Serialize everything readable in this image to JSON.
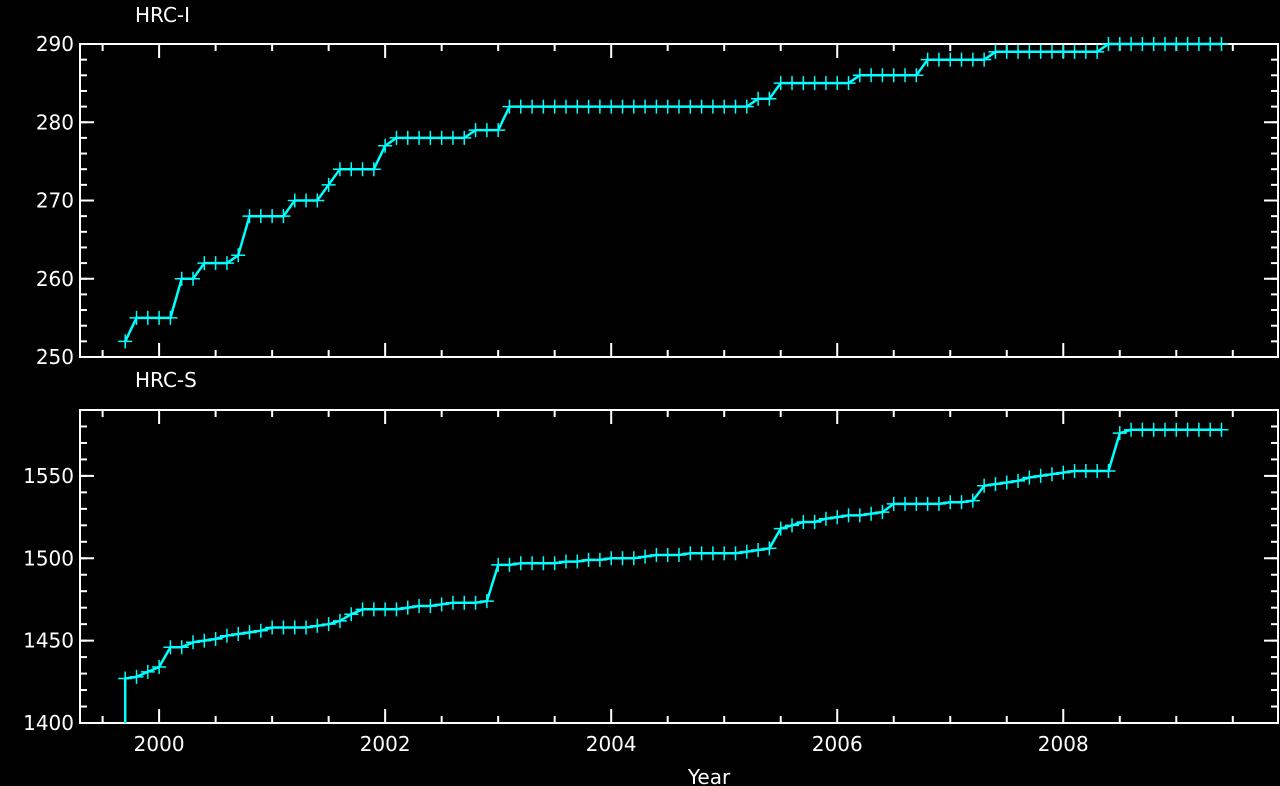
{
  "chart_data": [
    {
      "type": "line",
      "title": "HRC-I",
      "xlabel": "",
      "ylabel": "",
      "xlim": [
        1999.3,
        2009.9
      ],
      "ylim": [
        250,
        290
      ],
      "yticks": [
        250,
        260,
        270,
        280,
        290
      ],
      "xticks": [
        2000,
        2002,
        2004,
        2006,
        2008
      ],
      "x_tick_labels": [
        "",
        "",
        "",
        "",
        ""
      ],
      "y_tick_labels": [
        "250",
        "260",
        "270",
        "280",
        "290"
      ],
      "color": "#00ffff",
      "marker": "+",
      "grid": false,
      "x": [
        1999.7,
        1999.8,
        1999.9,
        2000.0,
        2000.1,
        2000.2,
        2000.3,
        2000.4,
        2000.5,
        2000.6,
        2000.7,
        2000.8,
        2000.9,
        2001.0,
        2001.1,
        2001.2,
        2001.3,
        2001.4,
        2001.5,
        2001.6,
        2001.7,
        2001.8,
        2001.9,
        2002.0,
        2002.1,
        2002.2,
        2002.3,
        2002.4,
        2002.5,
        2002.6,
        2002.7,
        2002.8,
        2002.9,
        2003.0,
        2003.1,
        2003.2,
        2003.3,
        2003.4,
        2003.5,
        2003.6,
        2003.7,
        2003.8,
        2003.9,
        2004.0,
        2004.1,
        2004.2,
        2004.3,
        2004.4,
        2004.5,
        2004.6,
        2004.7,
        2004.8,
        2004.9,
        2005.0,
        2005.1,
        2005.2,
        2005.3,
        2005.4,
        2005.5,
        2005.6,
        2005.7,
        2005.8,
        2005.9,
        2006.0,
        2006.1,
        2006.2,
        2006.3,
        2006.4,
        2006.5,
        2006.6,
        2006.7,
        2006.8,
        2006.9,
        2007.0,
        2007.1,
        2007.2,
        2007.3,
        2007.4,
        2007.5,
        2007.6,
        2007.7,
        2007.8,
        2007.9,
        2008.0,
        2008.1,
        2008.2,
        2008.3,
        2008.4,
        2008.5,
        2008.6,
        2008.7,
        2008.8,
        2008.9,
        2009.0,
        2009.1,
        2009.2,
        2009.3,
        2009.4
      ],
      "y": [
        252,
        255,
        255,
        255,
        255,
        260,
        260,
        262,
        262,
        262,
        263,
        268,
        268,
        268,
        268,
        270,
        270,
        270,
        272,
        274,
        274,
        274,
        274,
        277,
        278,
        278,
        278,
        278,
        278,
        278,
        278,
        279,
        279,
        279,
        282,
        282,
        282,
        282,
        282,
        282,
        282,
        282,
        282,
        282,
        282,
        282,
        282,
        282,
        282,
        282,
        282,
        282,
        282,
        282,
        282,
        282,
        283,
        283,
        285,
        285,
        285,
        285,
        285,
        285,
        285,
        286,
        286,
        286,
        286,
        286,
        286,
        288,
        288,
        288,
        288,
        288,
        288,
        289,
        289,
        289,
        289,
        289,
        289,
        289,
        289,
        289,
        289,
        290,
        290,
        290,
        290,
        290,
        290,
        290,
        290,
        290,
        290,
        290
      ]
    },
    {
      "type": "line",
      "title": "HRC-S",
      "xlabel": "Year",
      "ylabel": "",
      "xlim": [
        1999.3,
        2009.9
      ],
      "ylim": [
        1400,
        1590
      ],
      "yticks": [
        1400,
        1450,
        1500,
        1550
      ],
      "xticks": [
        2000,
        2002,
        2004,
        2006,
        2008
      ],
      "x_tick_labels": [
        "2000",
        "2002",
        "2004",
        "2006",
        "2008"
      ],
      "y_tick_labels": [
        "1400",
        "1450",
        "1500",
        "1550"
      ],
      "color": "#00ffff",
      "marker": "+",
      "grid": false,
      "x": [
        1999.7,
        1999.8,
        1999.9,
        2000.0,
        2000.1,
        2000.2,
        2000.3,
        2000.4,
        2000.5,
        2000.6,
        2000.7,
        2000.8,
        2000.9,
        2001.0,
        2001.1,
        2001.2,
        2001.3,
        2001.4,
        2001.5,
        2001.6,
        2001.7,
        2001.8,
        2001.9,
        2002.0,
        2002.1,
        2002.2,
        2002.3,
        2002.4,
        2002.5,
        2002.6,
        2002.7,
        2002.8,
        2002.9,
        2003.0,
        2003.1,
        2003.2,
        2003.3,
        2003.4,
        2003.5,
        2003.6,
        2003.7,
        2003.8,
        2003.9,
        2004.0,
        2004.1,
        2004.2,
        2004.3,
        2004.4,
        2004.5,
        2004.6,
        2004.7,
        2004.8,
        2004.9,
        2005.0,
        2005.1,
        2005.2,
        2005.3,
        2005.4,
        2005.5,
        2005.6,
        2005.7,
        2005.8,
        2005.9,
        2006.0,
        2006.1,
        2006.2,
        2006.3,
        2006.4,
        2006.5,
        2006.6,
        2006.7,
        2006.8,
        2006.9,
        2007.0,
        2007.1,
        2007.2,
        2007.3,
        2007.4,
        2007.5,
        2007.6,
        2007.7,
        2007.8,
        2007.9,
        2008.0,
        2008.1,
        2008.2,
        2008.3,
        2008.4,
        2008.5,
        2008.6,
        2008.7,
        2008.8,
        2008.9,
        2009.0,
        2009.1,
        2009.2,
        2009.3,
        2009.4
      ],
      "y": [
        1427,
        1428,
        1431,
        1434,
        1446,
        1446,
        1449,
        1450,
        1451,
        1453,
        1454,
        1455,
        1456,
        1458,
        1458,
        1458,
        1458,
        1459,
        1460,
        1462,
        1466,
        1469,
        1469,
        1469,
        1469,
        1470,
        1471,
        1471,
        1472,
        1473,
        1473,
        1473,
        1474,
        1496,
        1496,
        1497,
        1497,
        1497,
        1497,
        1498,
        1498,
        1499,
        1499,
        1500,
        1500,
        1500,
        1501,
        1502,
        1502,
        1502,
        1503,
        1503,
        1503,
        1503,
        1503,
        1504,
        1505,
        1506,
        1518,
        1520,
        1522,
        1522,
        1524,
        1525,
        1526,
        1526,
        1527,
        1528,
        1533,
        1533,
        1533,
        1533,
        1533,
        1534,
        1534,
        1535,
        1544,
        1545,
        1546,
        1547,
        1549,
        1550,
        1551,
        1552,
        1553,
        1553,
        1553,
        1553,
        1576,
        1578,
        1578,
        1578,
        1578,
        1578,
        1578,
        1578,
        1578,
        1578
      ]
    }
  ]
}
